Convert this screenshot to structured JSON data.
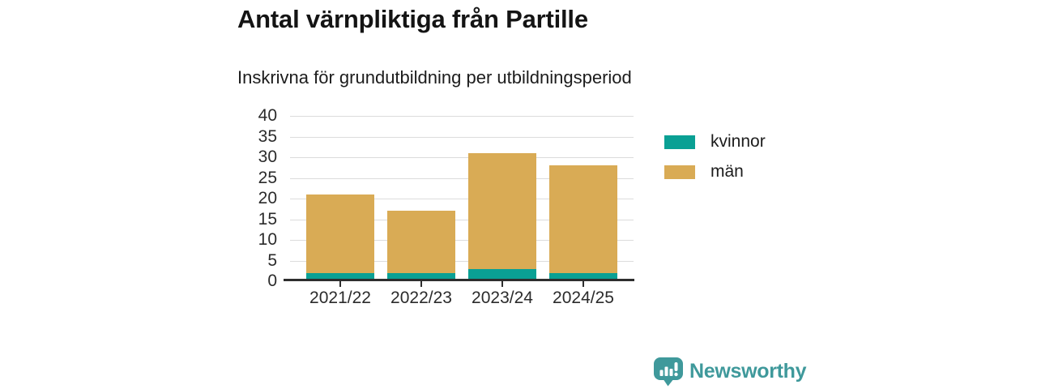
{
  "title": "Antal värnpliktiga från Partille",
  "subtitle": "Inskrivna för grundutbildning per utbildningsperiod",
  "chart_data": {
    "type": "bar",
    "stacked": true,
    "title": "Antal värnpliktiga från Partille",
    "subtitle": "Inskrivna för grundutbildning per utbildningsperiod",
    "categories": [
      "2021/22",
      "2022/23",
      "2023/24",
      "2024/25"
    ],
    "series": [
      {
        "name": "kvinnor",
        "color": "#0aa094",
        "values": [
          2,
          2,
          3,
          2
        ]
      },
      {
        "name": "män",
        "color": "#d9ab55",
        "values": [
          19,
          15,
          28,
          26
        ]
      }
    ],
    "totals": [
      21,
      17,
      31,
      28
    ],
    "xlabel": "",
    "ylabel": "",
    "ylim": [
      0,
      40
    ],
    "yticks": [
      0,
      5,
      10,
      15,
      20,
      25,
      30,
      35,
      40
    ],
    "grid": "horizontal",
    "gridline_color": "#dcdcdc",
    "axis_color": "#2e2e2e",
    "legend_position": "right"
  },
  "branding": {
    "logo_text": "Newsworthy",
    "color": "#3f999b",
    "icon": "newsworthy-chart-bubble-icon"
  }
}
